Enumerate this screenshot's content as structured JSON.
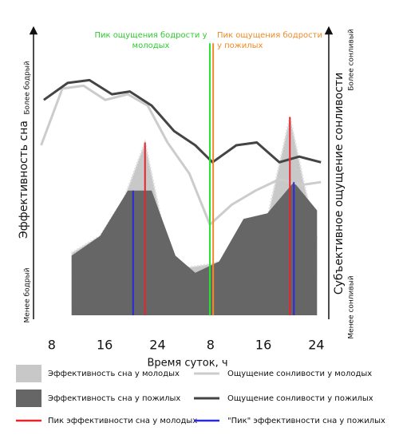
{
  "chart_data": {
    "type": "line",
    "x_label": "Время суток, ч",
    "y_label": "Эффективность сна",
    "y2_label": "Субъективное ощущение сонливости",
    "y_top_label": "Более бодрый",
    "y_bottom_label": "Менее бодрый",
    "y2_top_label": "Более сонливый",
    "y2_bottom_label": "Менее сонливый",
    "xlim": [
      5,
      50
    ],
    "ylim": [
      0,
      100
    ],
    "xticks": [
      8,
      16,
      24,
      {
        "value": 32,
        "label": "8"
      },
      {
        "value": 40,
        "label": "16"
      },
      {
        "value": 48,
        "label": "24"
      }
    ],
    "series": [
      {
        "name": "Эффективность сна у молодых",
        "type": "area",
        "color": "#c8c8c8",
        "x": [
          11.0,
          15.3,
          18.9,
          22.1,
          25.7,
          26.1,
          31.8,
          36.4,
          40.0,
          44.0,
          46.0,
          48.1
        ],
        "values": [
          22,
          28,
          41,
          61,
          21,
          16,
          18,
          21,
          28,
          70,
          48,
          27
        ]
      },
      {
        "name": "Ощущение сонливости у молодых",
        "type": "line",
        "color": "#cccccc",
        "x": [
          6.4,
          9.6,
          12.8,
          16.1,
          19.5,
          22.5,
          25.5,
          28.8,
          31.9,
          35.2,
          38.8,
          42.4,
          45.8,
          48.7
        ],
        "values": [
          60,
          80,
          81,
          76,
          78,
          74,
          61,
          50,
          32,
          39,
          44,
          48,
          46,
          47
        ]
      },
      {
        "name": "Эффективность сна у пожилых",
        "type": "area",
        "color": "#666666",
        "x": [
          11.0,
          15.3,
          19.5,
          23.1,
          26.7,
          29.7,
          33.3,
          37.0,
          40.6,
          44.6,
          48.1
        ],
        "values": [
          21,
          28,
          44,
          44,
          21,
          15,
          19,
          34,
          36,
          47,
          37
        ]
      },
      {
        "name": "Ощущение сонливости у пожилых",
        "type": "line",
        "color": "#444444",
        "x": [
          6.8,
          10.4,
          13.7,
          17.1,
          19.8,
          23.1,
          26.5,
          29.7,
          32.3,
          35.9,
          39.0,
          42.4,
          45.4,
          48.7
        ],
        "values": [
          76,
          82,
          83,
          78,
          79,
          74,
          65,
          60,
          54,
          60,
          61,
          54,
          56,
          54
        ]
      },
      {
        "name": "Пик эффективности сна у молодых",
        "type": "vline",
        "color": "#e8242a",
        "x": [
          22.1,
          44.0
        ],
        "values": [
          61,
          70
        ]
      },
      {
        "name": "\"Пик\" эффективности сна у пожилых",
        "type": "vline",
        "color": "#2a2adc",
        "x": [
          20.3,
          44.6
        ],
        "values": [
          44,
          47
        ]
      },
      {
        "name": "Пик ощущения бодрости у молодых",
        "type": "vline",
        "color": "#2ee02e",
        "x": [
          31.9
        ],
        "values": [
          96
        ]
      },
      {
        "name": "Пик ощущения бодрости у пожилых",
        "type": "vline",
        "color": "#f08a24",
        "x": [
          32.4
        ],
        "values": [
          96
        ]
      }
    ]
  }
}
